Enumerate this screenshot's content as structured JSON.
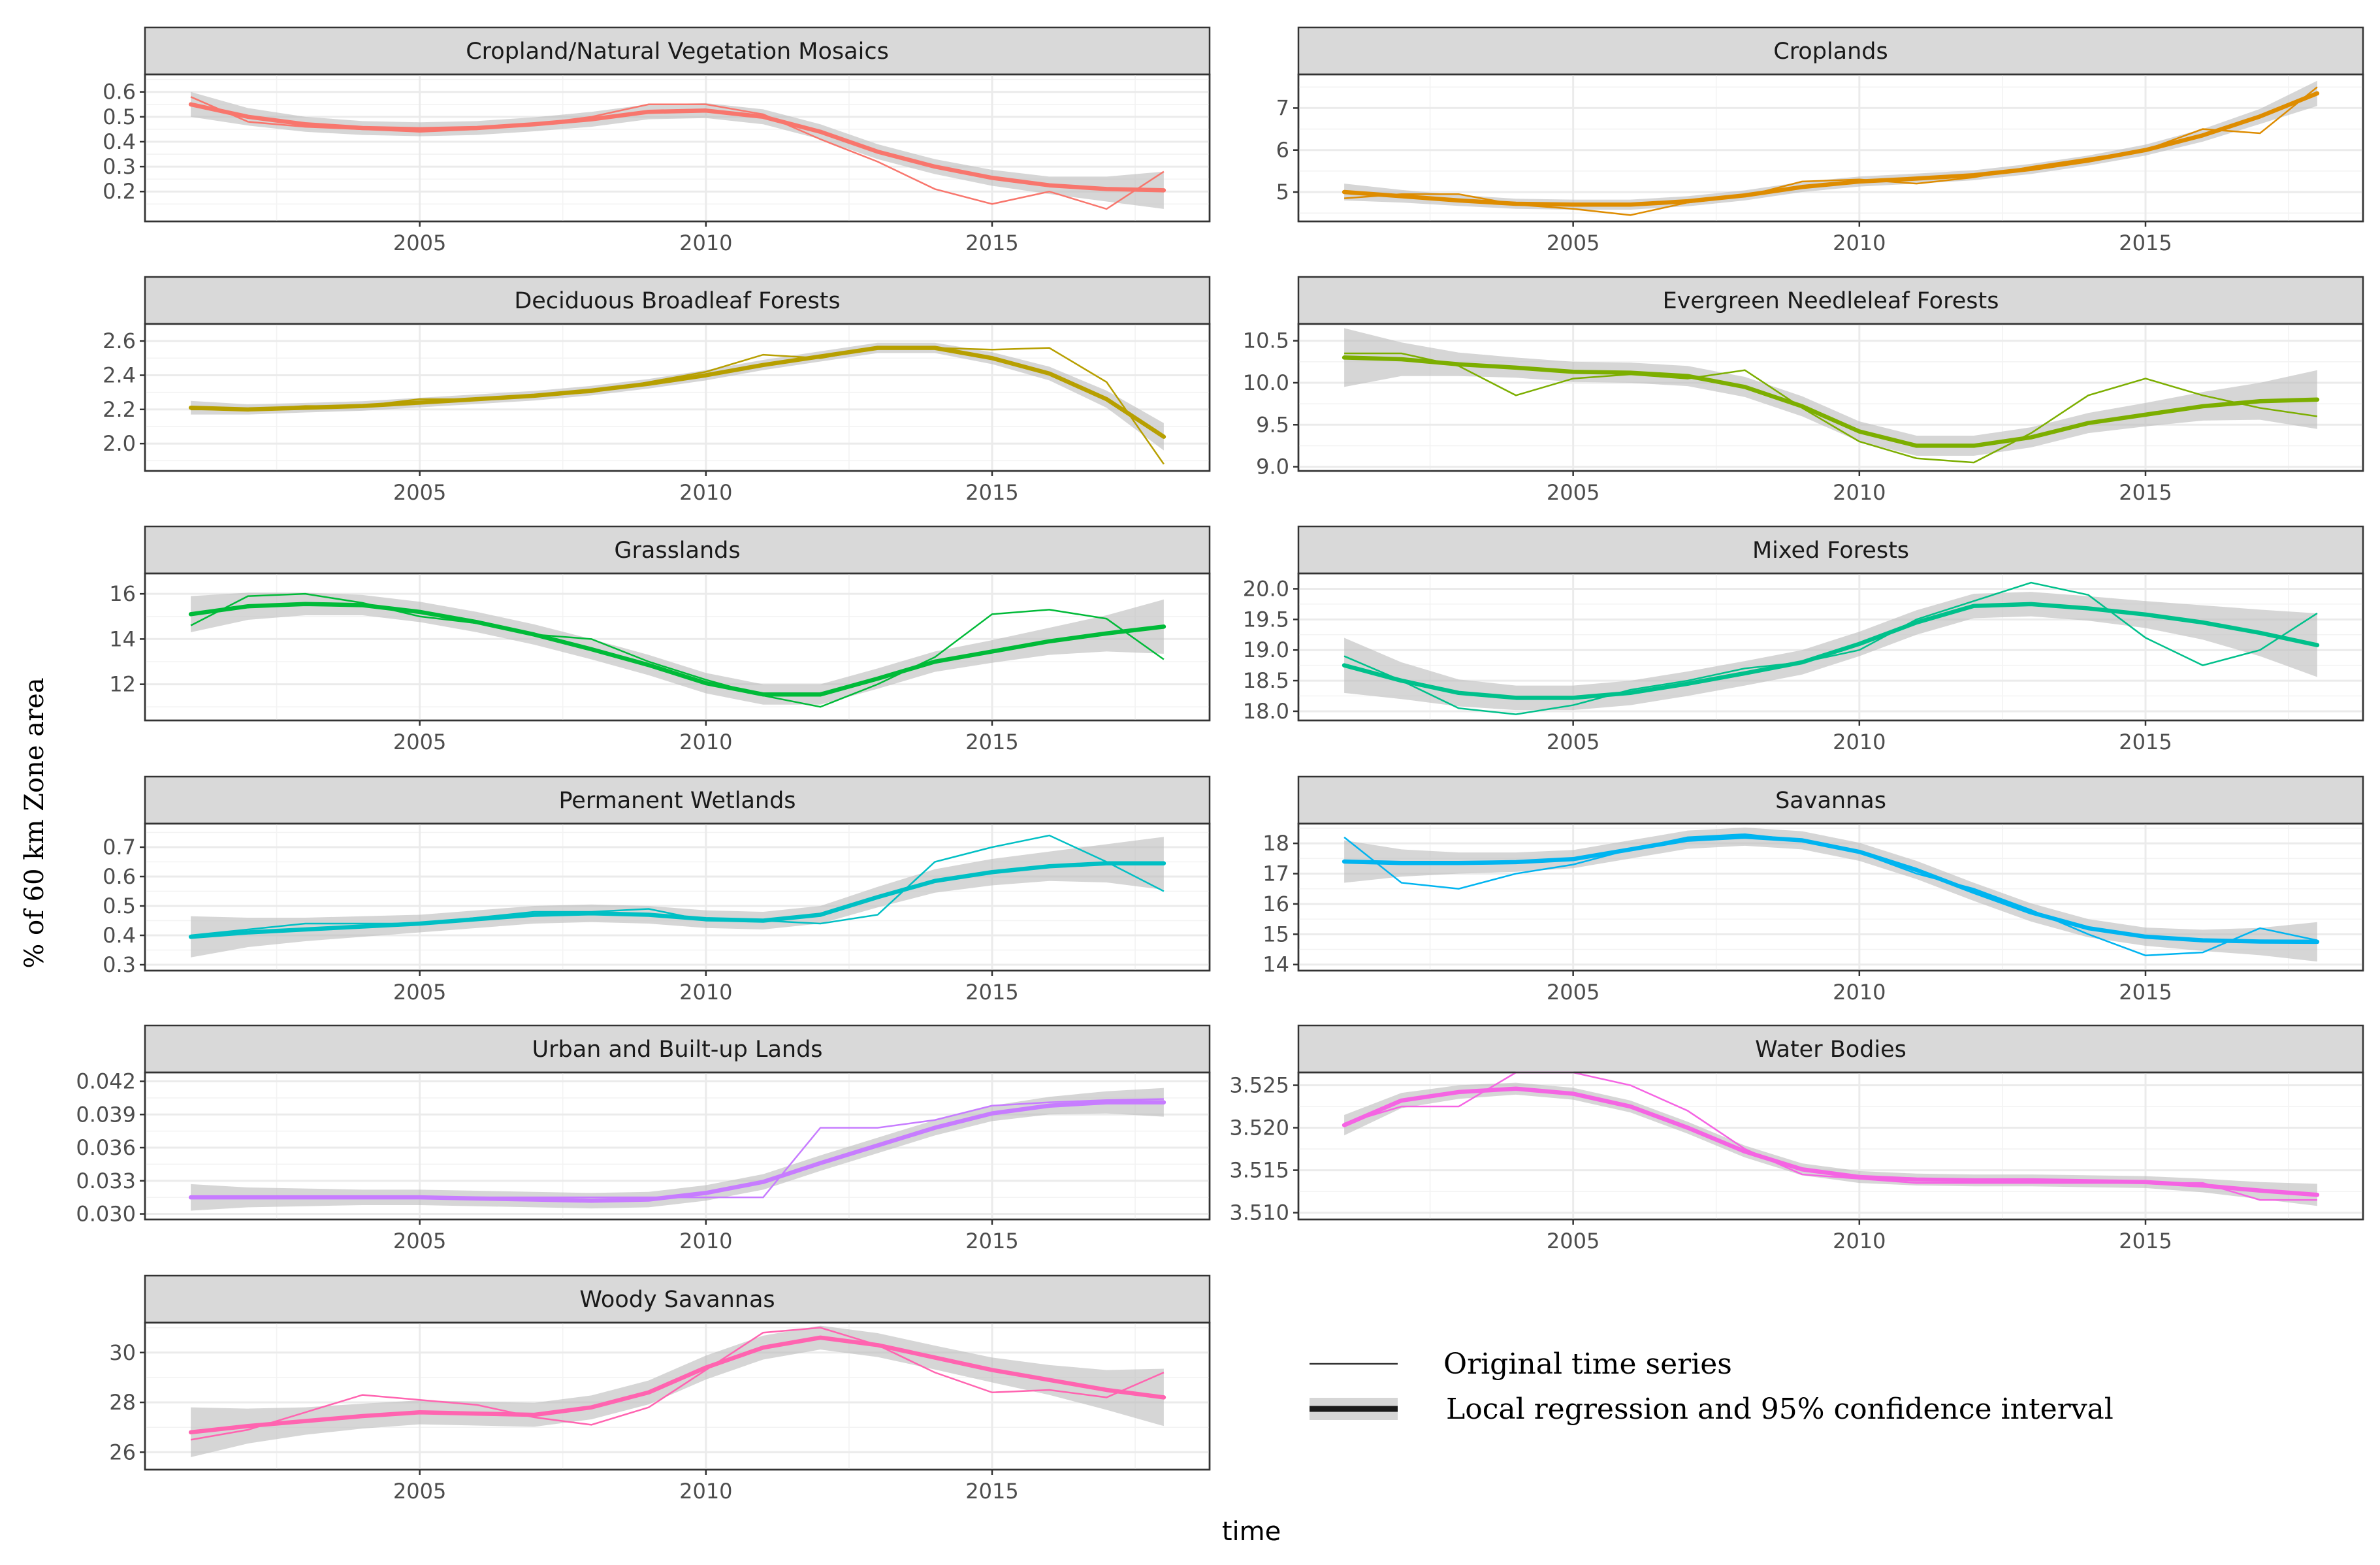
{
  "chart_data": {
    "type": "line",
    "ylabel": "% of 60 km Zone area",
    "xlabel": "time",
    "x_ticks": [
      2005,
      2010,
      2015
    ],
    "xlim": [
      2000.2,
      2018.8
    ],
    "legend": {
      "position": "bottom-right",
      "original_label": "Original time series",
      "smooth_label": "Local regression and 95% confidence interval"
    },
    "panels": [
      {
        "title": "Cropland/Natural Vegetation Mosaics",
        "color": "#F8766D",
        "ylim": [
          0.08,
          0.67
        ],
        "y_ticks": [
          0.2,
          0.3,
          0.4,
          0.5,
          0.6
        ],
        "y_tick_labels": [
          "0.2",
          "0.3",
          "0.4",
          "0.5",
          "0.6"
        ],
        "years": [
          2001,
          2002,
          2003,
          2004,
          2005,
          2006,
          2007,
          2008,
          2009,
          2010,
          2011,
          2012,
          2013,
          2014,
          2015,
          2016,
          2017,
          2018
        ],
        "original": [
          0.58,
          0.48,
          0.46,
          0.45,
          0.44,
          0.45,
          0.47,
          0.5,
          0.55,
          0.55,
          0.51,
          0.41,
          0.32,
          0.21,
          0.15,
          0.2,
          0.13,
          0.28
        ],
        "smooth": [
          0.55,
          0.5,
          0.47,
          0.455,
          0.45,
          0.455,
          0.47,
          0.49,
          0.52,
          0.525,
          0.5,
          0.44,
          0.36,
          0.3,
          0.255,
          0.225,
          0.21,
          0.205
        ],
        "ci_half": [
          0.05,
          0.035,
          0.03,
          0.028,
          0.028,
          0.028,
          0.028,
          0.03,
          0.03,
          0.03,
          0.03,
          0.03,
          0.03,
          0.03,
          0.032,
          0.035,
          0.05,
          0.075
        ]
      },
      {
        "title": "Croplands",
        "color": "#DE8C00",
        "ylim": [
          4.3,
          7.8
        ],
        "y_ticks": [
          5,
          6,
          7
        ],
        "y_tick_labels": [
          "5",
          "6",
          "7"
        ],
        "years": [
          2001,
          2002,
          2003,
          2004,
          2005,
          2006,
          2007,
          2008,
          2009,
          2010,
          2011,
          2012,
          2013,
          2014,
          2015,
          2016,
          2017,
          2018
        ],
        "original": [
          4.85,
          4.95,
          4.95,
          4.7,
          4.6,
          4.45,
          4.75,
          4.9,
          5.25,
          5.3,
          5.2,
          5.35,
          5.6,
          5.8,
          6.0,
          6.5,
          6.4,
          7.5
        ],
        "smooth": [
          5.0,
          4.9,
          4.8,
          4.72,
          4.7,
          4.7,
          4.78,
          4.92,
          5.12,
          5.25,
          5.32,
          5.4,
          5.55,
          5.75,
          6.0,
          6.35,
          6.8,
          7.35
        ],
        "ci_half": [
          0.2,
          0.15,
          0.13,
          0.12,
          0.12,
          0.12,
          0.12,
          0.12,
          0.12,
          0.12,
          0.12,
          0.12,
          0.12,
          0.12,
          0.13,
          0.15,
          0.18,
          0.3
        ]
      },
      {
        "title": "Deciduous Broadleaf Forests",
        "color": "#B79F00",
        "ylim": [
          1.84,
          2.7
        ],
        "y_ticks": [
          2.0,
          2.2,
          2.4,
          2.6
        ],
        "y_tick_labels": [
          "2.0",
          "2.2",
          "2.4",
          "2.6"
        ],
        "years": [
          2001,
          2002,
          2003,
          2004,
          2005,
          2006,
          2007,
          2008,
          2009,
          2010,
          2011,
          2012,
          2013,
          2014,
          2015,
          2016,
          2017,
          2018
        ],
        "original": [
          2.2,
          2.2,
          2.22,
          2.22,
          2.26,
          2.26,
          2.28,
          2.3,
          2.36,
          2.42,
          2.52,
          2.5,
          2.56,
          2.56,
          2.55,
          2.56,
          2.36,
          1.88
        ],
        "smooth": [
          2.21,
          2.2,
          2.21,
          2.22,
          2.24,
          2.26,
          2.28,
          2.31,
          2.35,
          2.4,
          2.46,
          2.51,
          2.56,
          2.56,
          2.5,
          2.41,
          2.26,
          2.04
        ],
        "ci_half": [
          0.04,
          0.03,
          0.028,
          0.028,
          0.028,
          0.028,
          0.028,
          0.028,
          0.028,
          0.03,
          0.03,
          0.03,
          0.03,
          0.03,
          0.035,
          0.04,
          0.05,
          0.08
        ]
      },
      {
        "title": "Evergreen Needleleaf Forests",
        "color": "#7CAE00",
        "ylim": [
          8.95,
          10.7
        ],
        "y_ticks": [
          9.0,
          9.5,
          10.0,
          10.5
        ],
        "y_tick_labels": [
          "9.0",
          "9.5",
          "10.0",
          "10.5"
        ],
        "years": [
          2001,
          2002,
          2003,
          2004,
          2005,
          2006,
          2007,
          2008,
          2009,
          2010,
          2011,
          2012,
          2013,
          2014,
          2015,
          2016,
          2017,
          2018
        ],
        "original": [
          10.35,
          10.35,
          10.2,
          9.85,
          10.05,
          10.1,
          10.05,
          10.15,
          9.7,
          9.3,
          9.1,
          9.05,
          9.4,
          9.85,
          10.05,
          9.85,
          9.7,
          9.6
        ],
        "smooth": [
          10.3,
          10.28,
          10.22,
          10.18,
          10.13,
          10.12,
          10.08,
          9.95,
          9.72,
          9.42,
          9.25,
          9.25,
          9.35,
          9.52,
          9.62,
          9.72,
          9.78,
          9.8
        ],
        "ci_half": [
          0.35,
          0.2,
          0.14,
          0.12,
          0.12,
          0.12,
          0.12,
          0.12,
          0.12,
          0.12,
          0.12,
          0.12,
          0.12,
          0.12,
          0.14,
          0.17,
          0.22,
          0.35
        ]
      },
      {
        "title": "Grasslands",
        "color": "#00BA38",
        "ylim": [
          10.4,
          16.9
        ],
        "y_ticks": [
          12,
          14,
          16
        ],
        "y_tick_labels": [
          "12",
          "14",
          "16"
        ],
        "years": [
          2001,
          2002,
          2003,
          2004,
          2005,
          2006,
          2007,
          2008,
          2009,
          2010,
          2011,
          2012,
          2013,
          2014,
          2015,
          2016,
          2017,
          2018
        ],
        "original": [
          14.6,
          15.9,
          16.0,
          15.6,
          15.0,
          14.7,
          14.2,
          14.0,
          13.0,
          12.2,
          11.5,
          11.0,
          12.0,
          13.2,
          15.1,
          15.3,
          14.9,
          13.1
        ],
        "smooth": [
          15.1,
          15.45,
          15.55,
          15.5,
          15.2,
          14.75,
          14.2,
          13.55,
          12.85,
          12.05,
          11.55,
          11.55,
          12.25,
          13.0,
          13.45,
          13.9,
          14.25,
          14.55
        ],
        "ci_half": [
          0.8,
          0.6,
          0.5,
          0.45,
          0.45,
          0.45,
          0.45,
          0.45,
          0.45,
          0.45,
          0.45,
          0.45,
          0.45,
          0.45,
          0.5,
          0.6,
          0.8,
          1.2
        ]
      },
      {
        "title": "Mixed Forests",
        "color": "#00C08B",
        "ylim": [
          17.85,
          20.25
        ],
        "y_ticks": [
          18.0,
          18.5,
          19.0,
          19.5,
          20.0
        ],
        "y_tick_labels": [
          "18.0",
          "18.5",
          "19.0",
          "19.5",
          "20.0"
        ],
        "years": [
          2001,
          2002,
          2003,
          2004,
          2005,
          2006,
          2007,
          2008,
          2009,
          2010,
          2011,
          2012,
          2013,
          2014,
          2015,
          2016,
          2017,
          2018
        ],
        "original": [
          18.9,
          18.5,
          18.05,
          17.95,
          18.1,
          18.35,
          18.5,
          18.7,
          18.8,
          19.0,
          19.5,
          19.8,
          20.1,
          19.9,
          19.2,
          18.75,
          19.0,
          19.6
        ],
        "smooth": [
          18.75,
          18.5,
          18.3,
          18.22,
          18.22,
          18.3,
          18.45,
          18.62,
          18.8,
          19.1,
          19.45,
          19.72,
          19.75,
          19.68,
          19.58,
          19.45,
          19.28,
          19.08
        ],
        "ci_half": [
          0.45,
          0.3,
          0.22,
          0.2,
          0.2,
          0.2,
          0.2,
          0.2,
          0.2,
          0.2,
          0.2,
          0.2,
          0.2,
          0.2,
          0.22,
          0.28,
          0.38,
          0.52
        ]
      },
      {
        "title": "Permanent Wetlands",
        "color": "#00BFC4",
        "ylim": [
          0.28,
          0.78
        ],
        "y_ticks": [
          0.3,
          0.4,
          0.5,
          0.6,
          0.7
        ],
        "y_tick_labels": [
          "0.3",
          "0.4",
          "0.5",
          "0.6",
          "0.7"
        ],
        "years": [
          2001,
          2002,
          2003,
          2004,
          2005,
          2006,
          2007,
          2008,
          2009,
          2010,
          2011,
          2012,
          2013,
          2014,
          2015,
          2016,
          2017,
          2018
        ],
        "original": [
          0.4,
          0.42,
          0.44,
          0.44,
          0.44,
          0.46,
          0.48,
          0.48,
          0.49,
          0.45,
          0.45,
          0.44,
          0.47,
          0.65,
          0.7,
          0.74,
          0.65,
          0.55
        ],
        "smooth": [
          0.395,
          0.41,
          0.42,
          0.43,
          0.44,
          0.455,
          0.47,
          0.475,
          0.47,
          0.455,
          0.45,
          0.47,
          0.53,
          0.585,
          0.615,
          0.635,
          0.645,
          0.645
        ],
        "ci_half": [
          0.07,
          0.05,
          0.04,
          0.035,
          0.03,
          0.03,
          0.03,
          0.03,
          0.03,
          0.03,
          0.03,
          0.03,
          0.035,
          0.04,
          0.045,
          0.05,
          0.065,
          0.09
        ]
      },
      {
        "title": "Savannas",
        "color": "#00B4F0",
        "ylim": [
          13.8,
          18.65
        ],
        "y_ticks": [
          14,
          15,
          16,
          17,
          18
        ],
        "y_tick_labels": [
          "14",
          "15",
          "16",
          "17",
          "18"
        ],
        "years": [
          2001,
          2002,
          2003,
          2004,
          2005,
          2006,
          2007,
          2008,
          2009,
          2010,
          2011,
          2012,
          2013,
          2014,
          2015,
          2016,
          2017,
          2018
        ],
        "original": [
          18.2,
          16.7,
          16.5,
          17.0,
          17.3,
          17.8,
          18.2,
          18.3,
          18.1,
          17.7,
          17.0,
          16.5,
          15.8,
          15.0,
          14.3,
          14.4,
          15.2,
          14.8
        ],
        "smooth": [
          17.4,
          17.35,
          17.35,
          17.38,
          17.48,
          17.8,
          18.12,
          18.22,
          18.1,
          17.72,
          17.12,
          16.4,
          15.72,
          15.2,
          14.92,
          14.8,
          14.76,
          14.75
        ],
        "ci_half": [
          0.7,
          0.45,
          0.35,
          0.32,
          0.3,
          0.3,
          0.3,
          0.3,
          0.3,
          0.3,
          0.3,
          0.3,
          0.3,
          0.3,
          0.3,
          0.35,
          0.45,
          0.65
        ]
      },
      {
        "title": "Urban and Built-up Lands",
        "color": "#C77CFF",
        "ylim": [
          0.0295,
          0.0428
        ],
        "y_ticks": [
          0.03,
          0.033,
          0.036,
          0.039,
          0.042
        ],
        "y_tick_labels": [
          "0.030",
          "0.033",
          "0.036",
          "0.039",
          "0.042"
        ],
        "years": [
          2001,
          2002,
          2003,
          2004,
          2005,
          2006,
          2007,
          2008,
          2009,
          2010,
          2011,
          2012,
          2013,
          2014,
          2015,
          2016,
          2017,
          2018
        ],
        "original": [
          0.0315,
          0.0315,
          0.0315,
          0.0315,
          0.0315,
          0.0315,
          0.0315,
          0.0315,
          0.0315,
          0.0315,
          0.0315,
          0.0378,
          0.0378,
          0.0385,
          0.0398,
          0.0401,
          0.0403,
          0.0404
        ],
        "smooth": [
          0.0315,
          0.0315,
          0.0315,
          0.0315,
          0.0315,
          0.0314,
          0.0313,
          0.0312,
          0.0313,
          0.0319,
          0.0329,
          0.0346,
          0.0362,
          0.0378,
          0.0391,
          0.0398,
          0.0401,
          0.0401
        ],
        "ci_half": [
          0.0012,
          0.0009,
          0.0008,
          0.0007,
          0.0007,
          0.0007,
          0.0007,
          0.0007,
          0.0007,
          0.0007,
          0.0007,
          0.0007,
          0.0007,
          0.0007,
          0.0007,
          0.0008,
          0.001,
          0.0013
        ]
      },
      {
        "title": "Water Bodies",
        "color": "#F564E3",
        "ylim": [
          3.5092,
          3.5265
        ],
        "y_ticks": [
          3.51,
          3.515,
          3.52,
          3.525
        ],
        "y_tick_labels": [
          "3.510",
          "3.515",
          "3.520",
          "3.525"
        ],
        "years": [
          2001,
          2002,
          2003,
          2004,
          2005,
          2006,
          2007,
          2008,
          2009,
          2010,
          2011,
          2012,
          2013,
          2014,
          2015,
          2016,
          2017,
          2018
        ],
        "original": [
          3.5205,
          3.5225,
          3.5225,
          3.5265,
          3.5265,
          3.525,
          3.522,
          3.5175,
          3.5145,
          3.514,
          3.5135,
          3.5135,
          3.5135,
          3.5135,
          3.5135,
          3.5135,
          3.5115,
          3.5115
        ],
        "smooth": [
          3.5203,
          3.5232,
          3.5242,
          3.5246,
          3.524,
          3.5225,
          3.52,
          3.5172,
          3.5151,
          3.5142,
          3.5139,
          3.5138,
          3.5138,
          3.5137,
          3.5136,
          3.5132,
          3.5126,
          3.5121
        ],
        "ci_half": [
          0.0012,
          0.0009,
          0.0008,
          0.0007,
          0.0007,
          0.0007,
          0.0007,
          0.0007,
          0.0007,
          0.0007,
          0.0007,
          0.0007,
          0.0007,
          0.0007,
          0.0007,
          0.0008,
          0.001,
          0.0013
        ]
      },
      {
        "title": "Woody Savannas",
        "color": "#FF64B0",
        "ylim": [
          25.3,
          31.2
        ],
        "y_ticks": [
          26,
          28,
          30
        ],
        "y_tick_labels": [
          "26",
          "28",
          "30"
        ],
        "years": [
          2001,
          2002,
          2003,
          2004,
          2005,
          2006,
          2007,
          2008,
          2009,
          2010,
          2011,
          2012,
          2013,
          2014,
          2015,
          2016,
          2017,
          2018
        ],
        "original": [
          26.5,
          26.9,
          27.6,
          28.3,
          28.1,
          27.9,
          27.4,
          27.1,
          27.8,
          29.3,
          30.8,
          31.0,
          30.3,
          29.2,
          28.4,
          28.5,
          28.2,
          29.2
        ],
        "smooth": [
          26.8,
          27.05,
          27.25,
          27.45,
          27.6,
          27.55,
          27.5,
          27.8,
          28.4,
          29.4,
          30.2,
          30.6,
          30.3,
          29.8,
          29.3,
          28.9,
          28.5,
          28.2
        ],
        "ci_half": [
          1.0,
          0.7,
          0.55,
          0.5,
          0.48,
          0.48,
          0.48,
          0.48,
          0.48,
          0.48,
          0.48,
          0.48,
          0.48,
          0.48,
          0.5,
          0.6,
          0.8,
          1.15
        ]
      }
    ]
  }
}
